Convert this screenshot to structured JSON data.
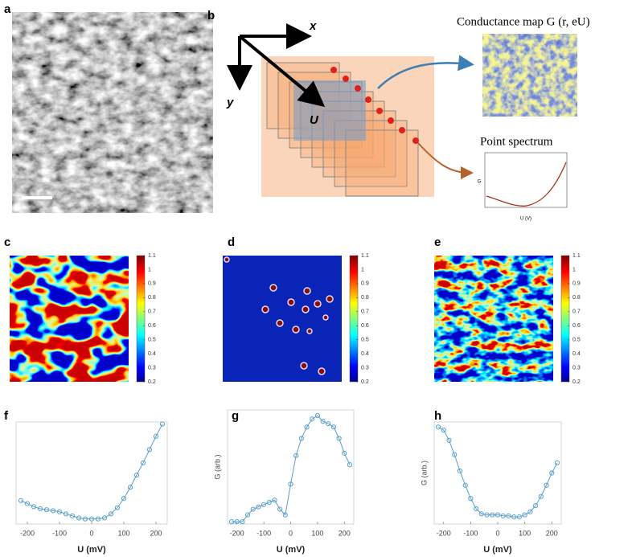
{
  "panel_labels": [
    "a",
    "b",
    "c",
    "d",
    "e",
    "f",
    "g",
    "h"
  ],
  "diagram": {
    "axis_x": "x",
    "axis_y": "y",
    "axis_u": "U",
    "map_title": "Conductance map G (r, eU)",
    "spectrum_title": "Point spectrum",
    "inset_xlabel": "U (V)",
    "inset_ylabel": "G"
  },
  "chart_data": [
    {
      "type": "colorbar",
      "colormap": "jet",
      "ylim": [
        0.2,
        1.1
      ],
      "yticks": [
        0.2,
        0.3,
        0.4,
        0.5,
        0.6,
        0.7,
        0.8,
        0.9,
        1,
        1.1
      ]
    },
    {
      "type": "colorbar",
      "colormap": "jet",
      "ylim": [
        0.2,
        1.1
      ],
      "yticks": [
        0.2,
        0.3,
        0.4,
        0.5,
        0.6,
        0.7,
        0.8,
        0.9,
        1,
        1.1
      ]
    },
    {
      "type": "colorbar",
      "colormap": "jet",
      "ylim": [
        0.2,
        1.1
      ],
      "yticks": [
        0.2,
        0.3,
        0.4,
        0.5,
        0.6,
        0.7,
        0.8,
        0.9,
        1,
        1.1
      ]
    },
    {
      "type": "line",
      "marker": "circle",
      "color": "#5b9fc9",
      "xlabel": "U (mV)",
      "x": [
        -220,
        -200,
        -180,
        -160,
        -140,
        -120,
        -100,
        -80,
        -60,
        -40,
        -20,
        0,
        20,
        40,
        60,
        80,
        100,
        120,
        140,
        160,
        180,
        200,
        220
      ],
      "values": [
        0.23,
        0.2,
        0.17,
        0.15,
        0.14,
        0.13,
        0.12,
        0.1,
        0.08,
        0.06,
        0.05,
        0.05,
        0.05,
        0.06,
        0.1,
        0.16,
        0.25,
        0.36,
        0.48,
        0.6,
        0.73,
        0.86,
        0.98
      ],
      "xlim": [
        -235,
        235
      ],
      "ylim": [
        0,
        1
      ],
      "xticks": [
        -200,
        -100,
        0,
        100,
        200
      ]
    },
    {
      "type": "line",
      "marker": "circle",
      "color": "#5b9fc9",
      "xlabel": "U (mV)",
      "ylabel": "G (arb.)",
      "x": [
        -220,
        -200,
        -180,
        -160,
        -140,
        -120,
        -100,
        -80,
        -60,
        -40,
        -20,
        0,
        20,
        40,
        60,
        80,
        100,
        120,
        140,
        160,
        180,
        200,
        220
      ],
      "values": [
        0.02,
        0.02,
        0.02,
        0.08,
        0.13,
        0.15,
        0.17,
        0.19,
        0.21,
        0.13,
        0.08,
        0.35,
        0.6,
        0.75,
        0.85,
        0.92,
        0.95,
        0.9,
        0.88,
        0.85,
        0.75,
        0.62,
        0.52
      ],
      "xlim": [
        -235,
        235
      ],
      "ylim": [
        0,
        1
      ],
      "xticks": [
        -200,
        -100,
        0,
        100,
        200
      ]
    },
    {
      "type": "line",
      "marker": "circle",
      "color": "#5b9fc9",
      "xlabel": "U (mV)",
      "ylabel": "G (arb.)",
      "x": [
        -220,
        -200,
        -180,
        -160,
        -140,
        -120,
        -100,
        -80,
        -60,
        -40,
        -20,
        0,
        20,
        40,
        60,
        80,
        100,
        120,
        140,
        160,
        180,
        200,
        220
      ],
      "values": [
        0.95,
        0.92,
        0.82,
        0.68,
        0.52,
        0.38,
        0.25,
        0.15,
        0.1,
        0.09,
        0.09,
        0.09,
        0.08,
        0.08,
        0.07,
        0.07,
        0.09,
        0.12,
        0.18,
        0.27,
        0.38,
        0.5,
        0.6
      ],
      "xlim": [
        -235,
        235
      ],
      "ylim": [
        0,
        1
      ],
      "xticks": [
        -200,
        -100,
        0,
        100,
        200
      ]
    }
  ]
}
